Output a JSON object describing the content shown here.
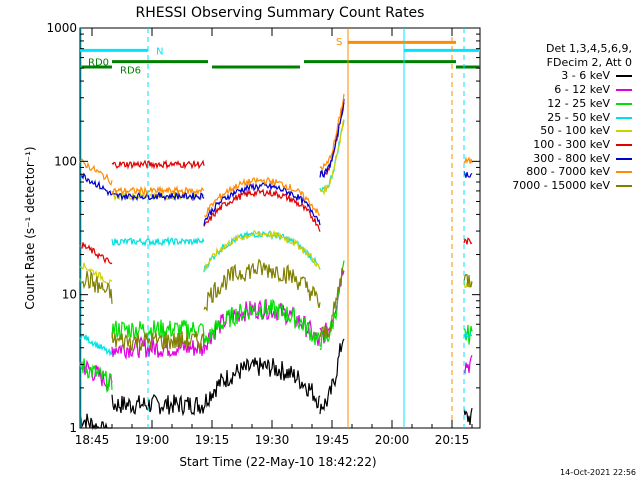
{
  "chart_data": {
    "type": "line",
    "title": "RHESSI Observing Summary Count Rates",
    "xlabel": "Start Time (22-May-10 18:42:22)",
    "ylabel": "Count Rate (s⁻¹ detector⁻¹)",
    "yscale": "log",
    "ylim": [
      1,
      1000
    ],
    "xlim": [
      "18:42",
      "20:22"
    ],
    "xticks": [
      "18:45",
      "19:00",
      "19:15",
      "19:30",
      "19:45",
      "20:00",
      "20:15"
    ],
    "yticks": [
      "1",
      "10",
      "100",
      "1000"
    ],
    "legend_header": [
      "Det 1,3,4,5,6,9,",
      "FDecim 2, Att 0"
    ],
    "legend_position": "right",
    "series": [
      {
        "name": "3 - 6 keV",
        "color": "#000000"
      },
      {
        "name": "6 - 12 keV",
        "color": "#e000e0"
      },
      {
        "name": "12 - 25 keV",
        "color": "#00e000"
      },
      {
        "name": "25 - 50 keV",
        "color": "#00e0e0"
      },
      {
        "name": "50 - 100 keV",
        "color": "#d0d000"
      },
      {
        "name": "100 - 300 keV",
        "color": "#e00000"
      },
      {
        "name": "300 - 800 keV",
        "color": "#0000d0"
      },
      {
        "name": "800 - 7000 keV",
        "color": "#ff8c00"
      },
      {
        "name": "7000 - 15000 keV",
        "color": "#808000"
      }
    ],
    "annotations": {
      "RD0": "RD0",
      "RD6": "RD6",
      "N": "N",
      "S": "S"
    }
  },
  "footer": {
    "timestamp": "14-Oct-2021 22:56"
  }
}
